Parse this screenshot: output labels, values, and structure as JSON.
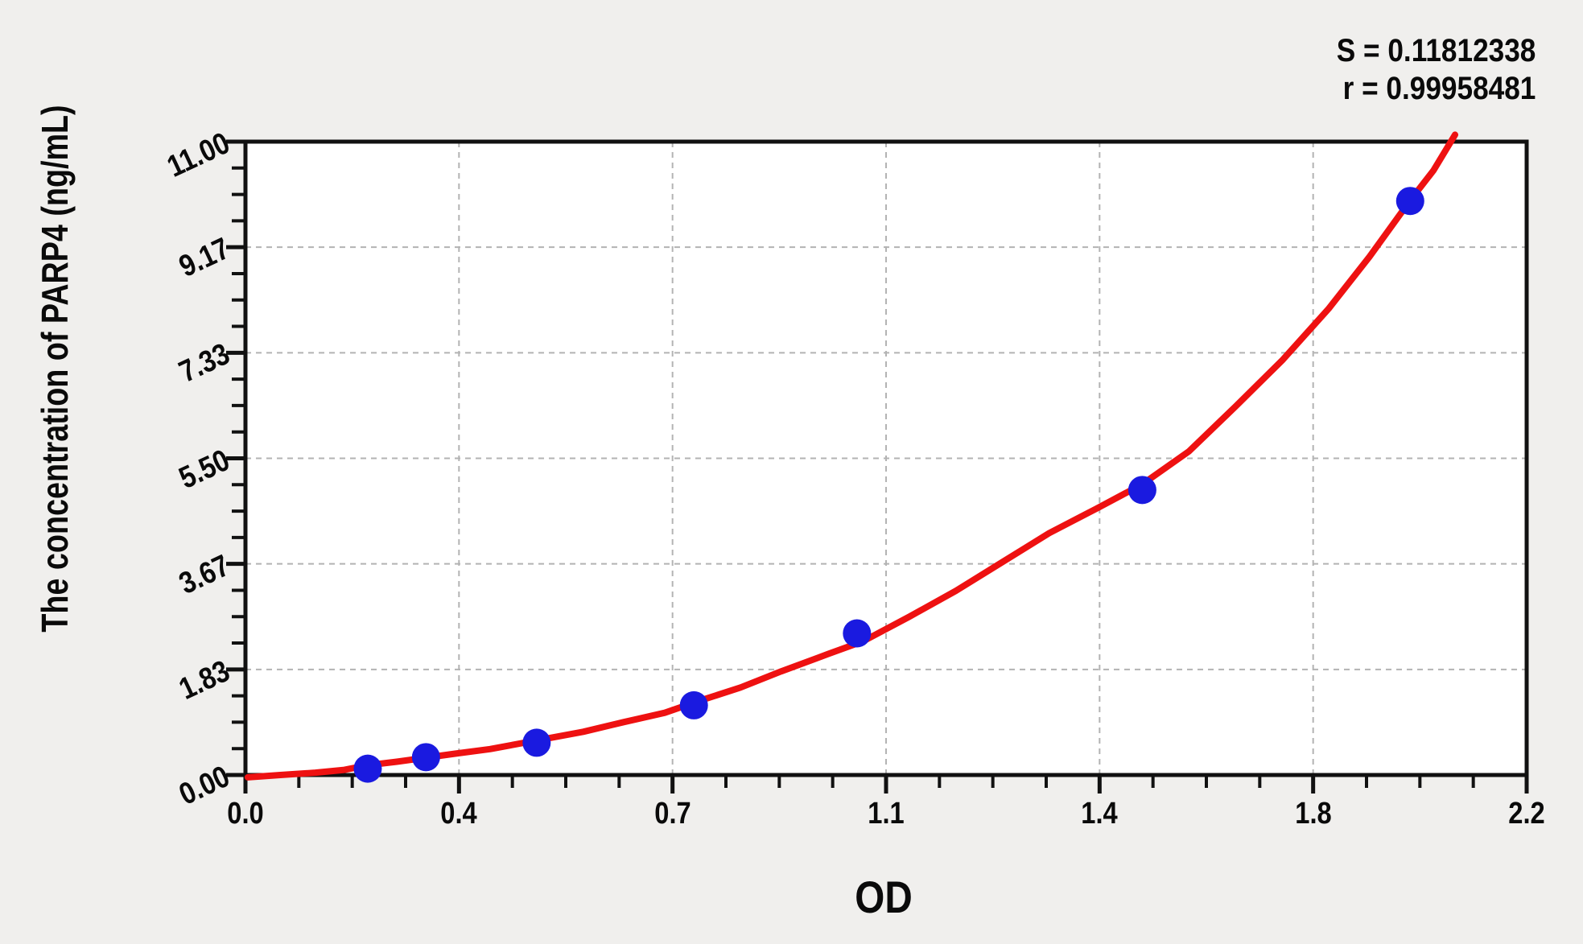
{
  "chart_data": {
    "type": "scatter",
    "description": "ELISA standard curve: blue standard points with red fitted curve",
    "xlabel": "OD",
    "ylabel": "The concentration of PARP4 (ng/mL)",
    "xlim": [
      0,
      2.2
    ],
    "ylim": [
      0,
      11
    ],
    "x_tick_labels": [
      "0.0",
      "0.4",
      "0.7",
      "1.1",
      "1.4",
      "1.8",
      "2.2"
    ],
    "y_tick_labels": [
      "0.00",
      "1.83",
      "3.67",
      "5.50",
      "7.33",
      "9.17",
      "11.00"
    ],
    "minor_ticks_per_major": 3,
    "grid": {
      "style": "dashed",
      "at_major_ticks": true
    },
    "stats": {
      "s_label": "S = 0.11812338",
      "r_label": "r = 0.99958481",
      "S": 0.11812338,
      "r": 0.99958481
    },
    "points": [
      [
        0.21,
        0.11
      ],
      [
        0.31,
        0.31
      ],
      [
        0.5,
        0.56
      ],
      [
        0.77,
        1.21
      ],
      [
        1.05,
        2.46
      ],
      [
        1.54,
        4.95
      ],
      [
        2.0,
        9.97
      ]
    ],
    "fit_curve": [
      [
        0.004,
        -0.04
      ],
      [
        0.06,
        0.0
      ],
      [
        0.12,
        0.04
      ],
      [
        0.17,
        0.09
      ],
      [
        0.21,
        0.17
      ],
      [
        0.26,
        0.23
      ],
      [
        0.31,
        0.3
      ],
      [
        0.36,
        0.37
      ],
      [
        0.42,
        0.45
      ],
      [
        0.5,
        0.6
      ],
      [
        0.58,
        0.75
      ],
      [
        0.65,
        0.92
      ],
      [
        0.72,
        1.08
      ],
      [
        0.78,
        1.29
      ],
      [
        0.85,
        1.52
      ],
      [
        0.92,
        1.8
      ],
      [
        1.0,
        2.1
      ],
      [
        1.06,
        2.32
      ],
      [
        1.14,
        2.75
      ],
      [
        1.22,
        3.2
      ],
      [
        1.3,
        3.7
      ],
      [
        1.38,
        4.2
      ],
      [
        1.46,
        4.62
      ],
      [
        1.54,
        5.05
      ],
      [
        1.62,
        5.62
      ],
      [
        1.7,
        6.4
      ],
      [
        1.78,
        7.2
      ],
      [
        1.86,
        8.1
      ],
      [
        1.93,
        9.0
      ],
      [
        2.0,
        9.98
      ],
      [
        2.04,
        10.5
      ],
      [
        2.077,
        11.12
      ]
    ],
    "colors": {
      "point": "#1a1ae0",
      "curve": "#ee1111",
      "grid": "#b3b3b3",
      "frame": "#111111",
      "plot_bg": "#ffffff",
      "page_bg": "#f0efed",
      "text": "#0a0a0a"
    }
  }
}
